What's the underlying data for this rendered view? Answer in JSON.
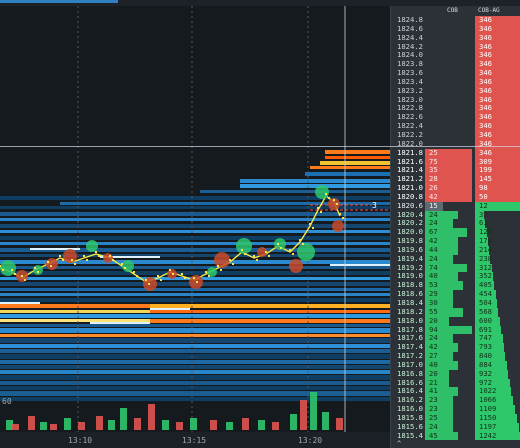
{
  "window": {
    "header_accent": "#2f7fc2"
  },
  "chart_data": {
    "type": "heatmap",
    "title": "",
    "x_ticks": [
      "13:10",
      "13:15",
      "13:20"
    ],
    "y_label_visible": "60",
    "colors": {
      "background": "#151a1f",
      "ask": "#e0544f",
      "bid": "#2ec76c",
      "liquidity_high": "#ff7a1a",
      "liquidity_mid": "#2f8fd0",
      "liquidity_low": "#0f3e63"
    }
  },
  "heatmap": {
    "crosshair_label": "3",
    "volume_axis_label": "60",
    "time_labels": [
      "13:10",
      "13:15",
      "13:20"
    ]
  },
  "ladder": {
    "col_cob": "COB",
    "col_cobag": "COB-AG",
    "footer_caret": "^",
    "rows": [
      {
        "price": "1824.8",
        "cob": "",
        "ag": "346",
        "side": "ask"
      },
      {
        "price": "1824.6",
        "cob": "",
        "ag": "346",
        "side": "ask"
      },
      {
        "price": "1824.4",
        "cob": "",
        "ag": "346",
        "side": "ask"
      },
      {
        "price": "1824.2",
        "cob": "",
        "ag": "346",
        "side": "ask"
      },
      {
        "price": "1824.0",
        "cob": "",
        "ag": "346",
        "side": "ask"
      },
      {
        "price": "1823.8",
        "cob": "",
        "ag": "346",
        "side": "ask"
      },
      {
        "price": "1823.6",
        "cob": "",
        "ag": "346",
        "side": "ask"
      },
      {
        "price": "1823.4",
        "cob": "",
        "ag": "346",
        "side": "ask"
      },
      {
        "price": "1823.2",
        "cob": "",
        "ag": "346",
        "side": "ask"
      },
      {
        "price": "1823.0",
        "cob": "",
        "ag": "346",
        "side": "ask"
      },
      {
        "price": "1822.8",
        "cob": "",
        "ag": "346",
        "side": "ask"
      },
      {
        "price": "1822.6",
        "cob": "",
        "ag": "346",
        "side": "ask"
      },
      {
        "price": "1822.4",
        "cob": "",
        "ag": "346",
        "side": "ask"
      },
      {
        "price": "1822.2",
        "cob": "",
        "ag": "346",
        "side": "ask"
      },
      {
        "price": "1822.0",
        "cob": "",
        "ag": "346",
        "side": "ask"
      },
      {
        "price": "1821.8",
        "cob": "25",
        "ag": "346",
        "side": "ask",
        "hi": true,
        "cobw": 1
      },
      {
        "price": "1821.6",
        "cob": "75",
        "ag": "309",
        "side": "ask",
        "hi": true,
        "cobw": 1
      },
      {
        "price": "1821.4",
        "cob": "35",
        "ag": "199",
        "side": "ask",
        "hi": true,
        "cobw": 1
      },
      {
        "price": "1821.2",
        "cob": "28",
        "ag": "145",
        "side": "ask",
        "hi": true,
        "cobw": 1
      },
      {
        "price": "1821.0",
        "cob": "26",
        "ag": "98",
        "side": "ask",
        "hi": true,
        "cobw": 1
      },
      {
        "price": "1820.8",
        "cob": "42",
        "ag": "50",
        "side": "ask",
        "hi": true,
        "cobw": 1
      },
      {
        "price": "1820.6",
        "cob": "15",
        "ag": "12",
        "side": "spread"
      },
      {
        "price": "1820.4",
        "cob": "24",
        "ag": "37",
        "side": "bid",
        "hi": true,
        "cobw": 0.7,
        "agw": 0.2
      },
      {
        "price": "1820.2",
        "cob": "24",
        "ag": "61",
        "side": "bid",
        "hi": true,
        "cobw": 0.6,
        "agw": 0.22
      },
      {
        "price": "1820.0",
        "cob": "67",
        "ag": "128",
        "side": "bid",
        "hi": true,
        "cobw": 0.9,
        "agw": 0.25
      },
      {
        "price": "1819.8",
        "cob": "42",
        "ag": "170",
        "side": "bid",
        "hi": true,
        "cobw": 0.7,
        "agw": 0.28
      },
      {
        "price": "1819.6",
        "cob": "44",
        "ag": "214",
        "side": "bid",
        "hi": true,
        "cobw": 0.7,
        "agw": 0.3
      },
      {
        "price": "1819.4",
        "cob": "24",
        "ag": "238",
        "side": "bid",
        "hi": true,
        "cobw": 0.6,
        "agw": 0.33
      },
      {
        "price": "1819.2",
        "cob": "74",
        "ag": "312",
        "side": "bid",
        "hi": true,
        "cobw": 0.9,
        "agw": 0.36
      },
      {
        "price": "1819.0",
        "cob": "40",
        "ag": "352",
        "side": "bid",
        "hi": true,
        "cobw": 0.7,
        "agw": 0.39
      },
      {
        "price": "1818.8",
        "cob": "53",
        "ag": "405",
        "side": "bid",
        "hi": true,
        "cobw": 0.8,
        "agw": 0.42
      },
      {
        "price": "1818.6",
        "cob": "29",
        "ag": "454",
        "side": "bid",
        "hi": true,
        "cobw": 0.6,
        "agw": 0.45
      },
      {
        "price": "1818.4",
        "cob": "30",
        "ag": "504",
        "side": "bid",
        "hi": true,
        "cobw": 0.6,
        "agw": 0.48
      },
      {
        "price": "1818.2",
        "cob": "55",
        "ag": "568",
        "side": "bid",
        "hi": true,
        "cobw": 0.8,
        "agw": 0.51
      },
      {
        "price": "1818.0",
        "cob": "20",
        "ag": "600",
        "side": "bid",
        "hi": true,
        "cobw": 0.5,
        "agw": 0.54
      },
      {
        "price": "1817.8",
        "cob": "94",
        "ag": "691",
        "side": "bid",
        "hi": true,
        "cobw": 1,
        "agw": 0.57
      },
      {
        "price": "1817.6",
        "cob": "24",
        "ag": "747",
        "side": "bid",
        "hi": true,
        "cobw": 0.6,
        "agw": 0.6
      },
      {
        "price": "1817.4",
        "cob": "42",
        "ag": "793",
        "side": "bid",
        "hi": true,
        "cobw": 0.7,
        "agw": 0.63
      },
      {
        "price": "1817.2",
        "cob": "27",
        "ag": "840",
        "side": "bid",
        "hi": true,
        "cobw": 0.6,
        "agw": 0.66
      },
      {
        "price": "1817.0",
        "cob": "40",
        "ag": "884",
        "side": "bid",
        "hi": true,
        "cobw": 0.7,
        "agw": 0.69
      },
      {
        "price": "1816.8",
        "cob": "20",
        "ag": "932",
        "side": "bid",
        "hi": true,
        "cobw": 0.5,
        "agw": 0.72
      },
      {
        "price": "1816.6",
        "cob": "21",
        "ag": "972",
        "side": "bid",
        "hi": true,
        "cobw": 0.5,
        "agw": 0.75
      },
      {
        "price": "1816.4",
        "cob": "41",
        "ag": "1022",
        "side": "bid",
        "hi": true,
        "cobw": 0.7,
        "agw": 0.79
      },
      {
        "price": "1816.2",
        "cob": "23",
        "ag": "1066",
        "side": "bid",
        "hi": true,
        "cobw": 0.6,
        "agw": 0.83
      },
      {
        "price": "1816.0",
        "cob": "23",
        "ag": "1109",
        "side": "bid",
        "hi": true,
        "cobw": 0.6,
        "agw": 0.87
      },
      {
        "price": "1815.8",
        "cob": "25",
        "ag": "1150",
        "side": "bid",
        "hi": true,
        "cobw": 0.6,
        "agw": 0.91
      },
      {
        "price": "1815.6",
        "cob": "24",
        "ag": "1197",
        "side": "bid",
        "hi": true,
        "cobw": 0.6,
        "agw": 0.95
      },
      {
        "price": "1815.4",
        "cob": "45",
        "ag": "1242",
        "side": "bid",
        "hi": true,
        "cobw": 0.7,
        "agw": 1.0
      }
    ]
  }
}
